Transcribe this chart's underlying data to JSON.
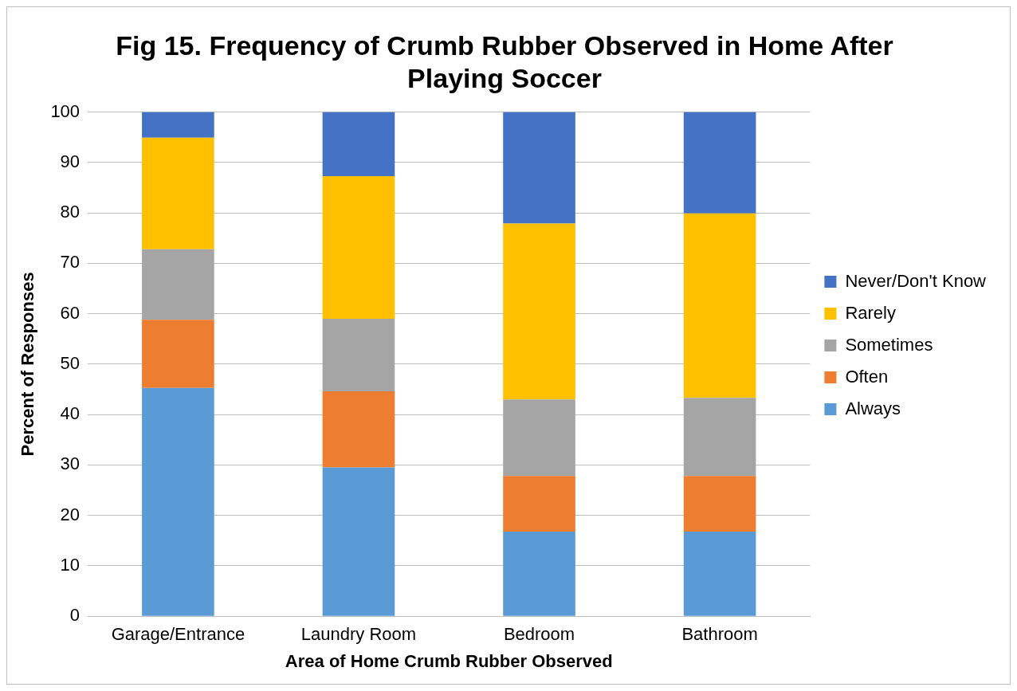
{
  "chart_data": {
    "type": "bar",
    "title": "Fig 15. Frequency of Crumb Rubber Observed in Home After Playing Soccer",
    "xlabel": "Area of Home Crumb Rubber Observed",
    "ylabel": "Percent of Responses",
    "categories": [
      "Garage/Entrance",
      "Laundry Room",
      "Bedroom",
      "Bathroom"
    ],
    "stacked": true,
    "series": [
      {
        "name": "Always",
        "color": "#5b9bd5",
        "values": [
          45.3,
          29.5,
          16.8,
          16.8
        ]
      },
      {
        "name": "Often",
        "color": "#ed7d31",
        "values": [
          13.5,
          15.1,
          11.0,
          11.0
        ]
      },
      {
        "name": "Sometimes",
        "color": "#a5a5a5",
        "values": [
          14.0,
          14.4,
          15.2,
          15.5
        ]
      },
      {
        "name": "Rarely",
        "color": "#ffc000",
        "values": [
          22.1,
          28.3,
          34.9,
          36.6
        ]
      },
      {
        "name": "Never/Don't Know",
        "color": "#4472c4",
        "values": [
          5.1,
          12.7,
          22.1,
          20.1
        ]
      }
    ],
    "ylim": [
      0,
      100
    ],
    "yticks": [
      0,
      10,
      20,
      30,
      40,
      50,
      60,
      70,
      80,
      90,
      100
    ],
    "grid": "y",
    "legend": "right"
  }
}
